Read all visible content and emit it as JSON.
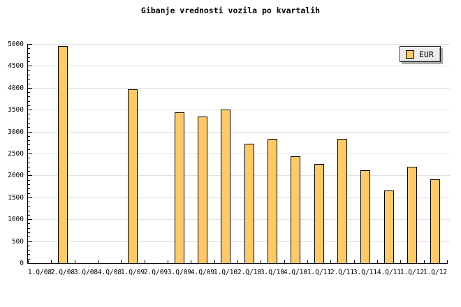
{
  "colors": {
    "bar_fill": "#ffc966",
    "bar_border": "#000000",
    "grid_line": "#e0e0e0",
    "axis": "#000000",
    "background": "#ffffff",
    "legend_bg": "#ebebeb",
    "legend_shadow": "#ababab",
    "text": "#000000"
  },
  "chart_data": {
    "type": "bar",
    "title": "Gibanje vrednosti vozila po kvartalih",
    "categories": [
      "1.Q/08",
      "2.Q/08",
      "3.Q/08",
      "4.Q/08",
      "1.Q/09",
      "2.Q/09",
      "3.Q/09",
      "4.Q/09",
      "1.Q/10",
      "2.Q/10",
      "3.Q/10",
      "4.Q/10",
      "1.Q/11",
      "2.Q/11",
      "3.Q/11",
      "4.Q/11",
      "1.Q/12",
      "1.Q/12"
    ],
    "series": [
      {
        "name": "EUR",
        "values": [
          null,
          4950,
          null,
          null,
          3960,
          null,
          3440,
          3340,
          3510,
          2720,
          2840,
          2440,
          2260,
          2840,
          2120,
          1660,
          2190,
          1910
        ]
      }
    ],
    "xlabel": "",
    "ylabel": "",
    "ylim": [
      0,
      5000
    ],
    "yticks": {
      "step": 500,
      "minor_step": 100
    },
    "grid": "horizontal-major-lines",
    "legend_position": "top-right"
  }
}
